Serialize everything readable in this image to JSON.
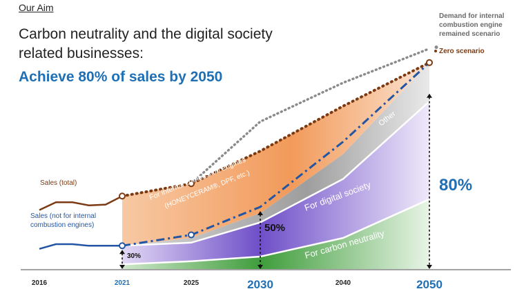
{
  "header": {
    "section": "Our Aim",
    "headline_line1": "Carbon neutrality and the digital society",
    "headline_line2": "related businesses:",
    "goal": "Achieve 80% of sales by 2050"
  },
  "colors": {
    "orange": "#f19a5c",
    "purple": "#8d6fd1",
    "green": "#4fa84b",
    "gray": "#b5b5b5",
    "brown": "#7b3a12",
    "blue": "#2255a4",
    "accent_blue": "#1f6fb5"
  },
  "chart_data": {
    "type": "area",
    "title": "",
    "x_ticks": [
      "2016",
      "2021",
      "2025",
      "2030",
      "2040",
      "2050"
    ],
    "x_tick_emphasis": {
      "2021": "blue",
      "2030": "large-blue",
      "2050": "large-blue"
    },
    "series": [
      {
        "name": "Sales (total)",
        "kind": "line-history",
        "x": [
          2016,
          2017,
          2018,
          2019,
          2020,
          2021
        ],
        "y": [
          38,
          43,
          43,
          41,
          41.5,
          47
        ]
      },
      {
        "name": "Sales (not for internal combustion engines)",
        "kind": "line-history",
        "x": [
          2016,
          2017,
          2018,
          2019,
          2020,
          2021
        ],
        "y": [
          13,
          16,
          16,
          15,
          15,
          15
        ]
      },
      {
        "name": "Zero scenario",
        "kind": "dotted-projection",
        "x": [
          2021,
          2025,
          2030,
          2040,
          2050
        ],
        "y": [
          47,
          55,
          76,
          105,
          133
        ]
      },
      {
        "name": "Demand for internal combustion engine remained scenario",
        "kind": "dotted-projection",
        "x": [
          2025,
          2030,
          2040,
          2050
        ],
        "y": [
          55,
          95,
          120,
          142
        ]
      },
      {
        "name": "Sales (not for ICE) projection",
        "kind": "dashdot-projection",
        "x": [
          2021,
          2025,
          2030,
          2040,
          2050
        ],
        "y": [
          15,
          22,
          40,
          82,
          133
        ]
      }
    ],
    "stacked_areas": [
      {
        "name": "For carbon neutrality",
        "x": [
          2021,
          2025,
          2030,
          2040,
          2050
        ],
        "y": [
          3,
          5,
          8,
          20,
          45
        ]
      },
      {
        "name": "For digital society",
        "x": [
          2021,
          2025,
          2030,
          2040,
          2050
        ],
        "y": [
          15,
          17,
          30,
          58,
          108
        ]
      },
      {
        "name": "Other",
        "x": [
          2021,
          2025,
          2030,
          2040,
          2050
        ],
        "y": [
          15,
          20,
          36,
          74,
          133
        ]
      },
      {
        "name": "For internal combustion engines",
        "x": [
          2021,
          2025,
          2030,
          2040,
          2050
        ],
        "y": [
          47,
          55,
          76,
          105,
          133
        ]
      }
    ],
    "annotations": {
      "ice_label_line1": "For internal combustion engines",
      "ice_label_line2": "(HONEYCERAM®, DPF, etc.)",
      "other": "Other",
      "digital": "For digital society",
      "carbon": "For carbon neutrality",
      "sales_total": "Sales (total)",
      "sales_not_ice_line1": "Sales (not for internal",
      "sales_not_ice_line2": "combustion engines)",
      "demand_line1": "Demand for internal",
      "demand_line2": "combustion engine",
      "demand_line3": "remained scenario",
      "zero_scenario": "Zero scenario",
      "pct_2021": "30%",
      "pct_2030": "50%",
      "pct_2050": "80%"
    },
    "ylim": [
      0,
      160
    ],
    "grid": false
  }
}
